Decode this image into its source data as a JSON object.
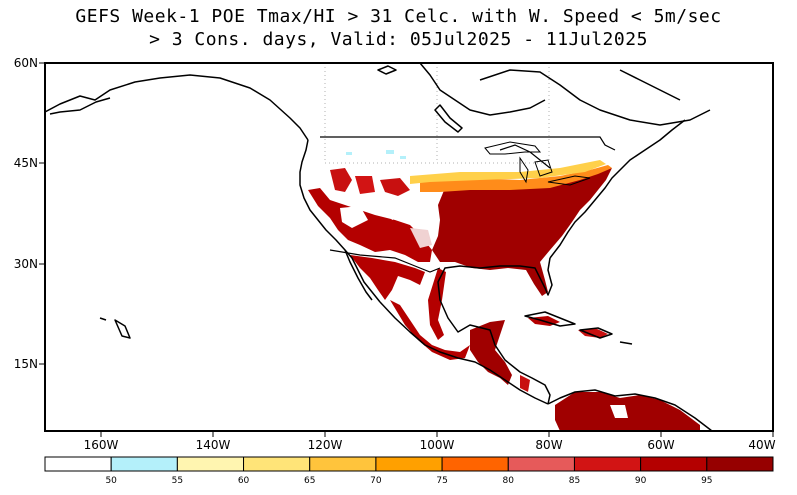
{
  "title": {
    "line1": "GEFS Week-1 POE Tmax/HI > 31 Celc. with W. Speed < 5m/sec",
    "line2": "> 3 Cons. days, Valid: 05Jul2025 - 11Jul2025"
  },
  "map": {
    "lon_range": [
      -170,
      -40
    ],
    "lat_range": [
      5,
      60
    ],
    "lat_ticks": [
      "60N",
      "45N",
      "30N",
      "15N"
    ],
    "lon_ticks": [
      "160W",
      "140W",
      "120W",
      "100W",
      "80W",
      "60W",
      "40W"
    ],
    "grid": "dotted"
  },
  "legend": {
    "labels": [
      "50",
      "55",
      "60",
      "65",
      "70",
      "75",
      "80",
      "85",
      "90",
      "95"
    ],
    "colors": [
      "#ffffff",
      "#b4f0fa",
      "#fff5b0",
      "#ffe478",
      "#ffc43c",
      "#ffa000",
      "#ff6400",
      "#e65a5a",
      "#d21414",
      "#b40000",
      "#960000"
    ]
  }
}
